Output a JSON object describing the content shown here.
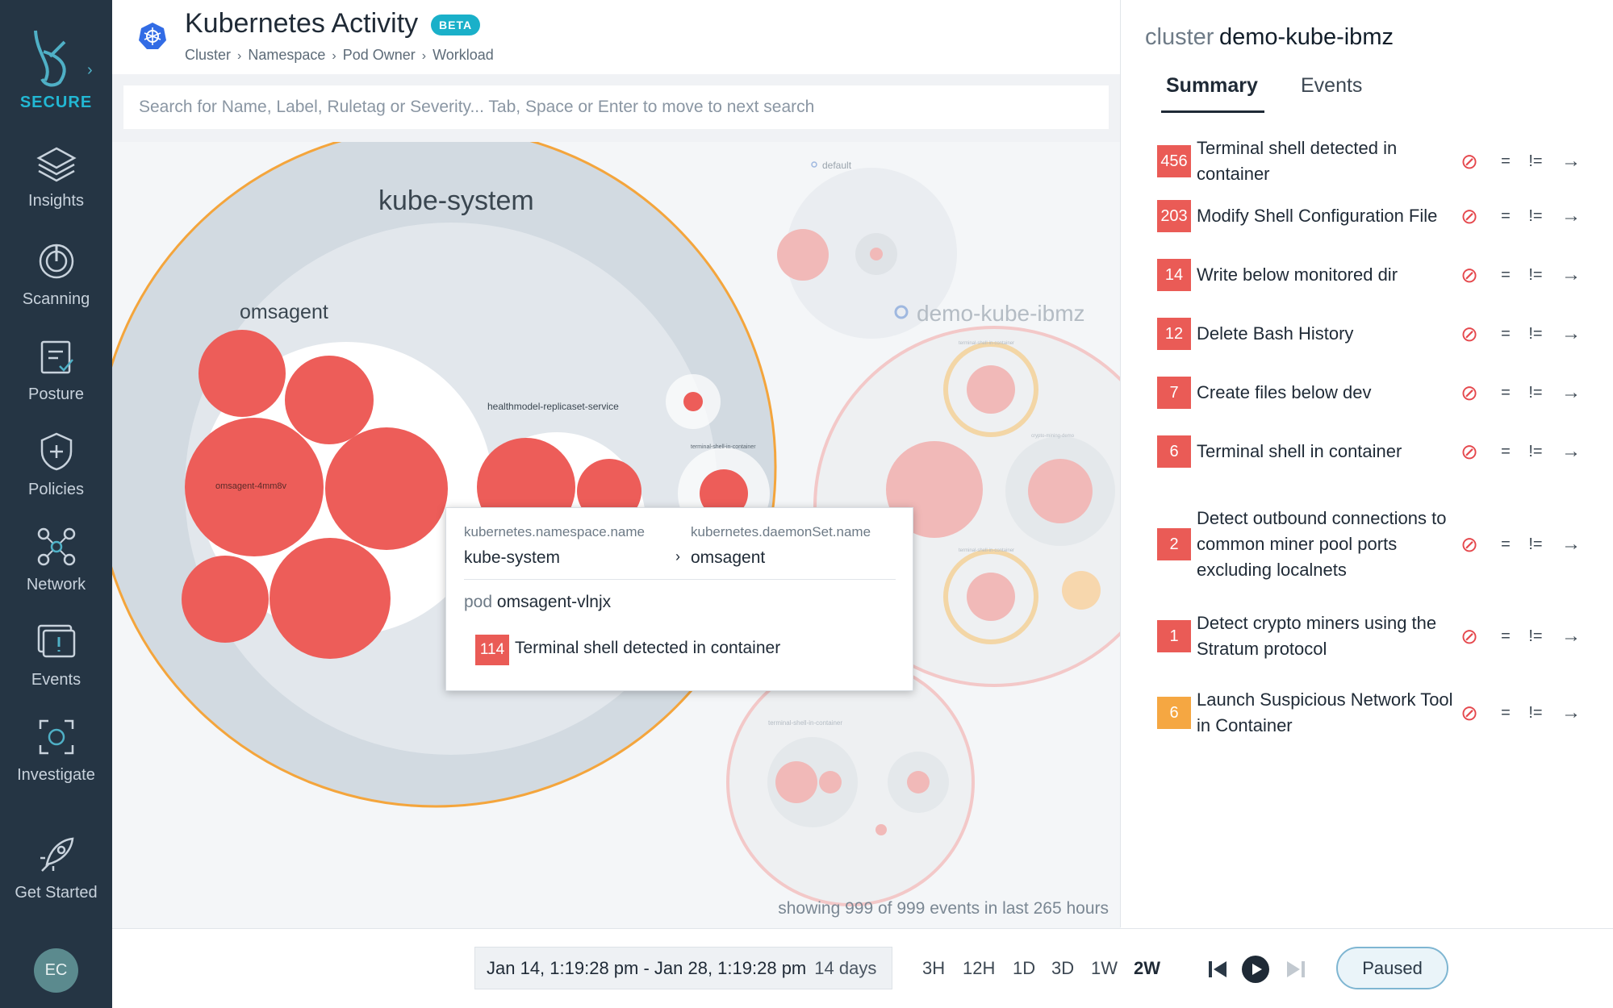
{
  "nav": {
    "brand": "SECURE",
    "items": [
      {
        "label": "Insights",
        "icon": "insights-icon"
      },
      {
        "label": "Scanning",
        "icon": "scanning-icon"
      },
      {
        "label": "Posture",
        "icon": "posture-icon"
      },
      {
        "label": "Policies",
        "icon": "policies-icon"
      },
      {
        "label": "Network",
        "icon": "network-icon"
      },
      {
        "label": "Events",
        "icon": "events-icon"
      },
      {
        "label": "Investigate",
        "icon": "investigate-icon"
      },
      {
        "label": "Get Started",
        "icon": "rocket-icon"
      }
    ],
    "avatar": "EC"
  },
  "header": {
    "title": "Kubernetes Activity",
    "badge": "BETA",
    "breadcrumb": [
      "Cluster",
      "Namespace",
      "Pod Owner",
      "Workload"
    ]
  },
  "search": {
    "placeholder": "Search for Name, Label, Ruletag or Severity... Tab, Space or Enter to move to next search"
  },
  "viz": {
    "namespace_kube_system": "kube-system",
    "workload_omsagent": "omsagent",
    "pod_label": "omsagent-4mm8v",
    "healthmodel": "healthmodel-replicaset-service",
    "terminal_small": "terminal-shell-in-container",
    "default_ns": "default",
    "cluster_label": "demo-kube-ibmz",
    "crypto_label": "crypto-mining-demo",
    "terminal_label_2": "terminal-shell-in-container",
    "terminal_label_3": "terminal-shell-in-container",
    "terminal_label_4": "terminal-shell-in-container",
    "status": "showing 999 of 999 events in last 265 hours"
  },
  "tooltip": {
    "ns_key": "kubernetes.namespace.name",
    "ns_val": "kube-system",
    "ds_key": "kubernetes.daemonSet.name",
    "ds_val": "omsagent",
    "pod_key": "pod",
    "pod_val": "omsagent-vlnjx",
    "event_count": "114",
    "event_name": "Terminal shell detected in container"
  },
  "timebar": {
    "range": "Jan 14, 1:19:28 pm - Jan 28, 1:19:28 pm",
    "duration": "14 days",
    "buttons": [
      "3H",
      "12H",
      "1D",
      "3D",
      "1W",
      "2W"
    ],
    "active": "2W",
    "paused_label": "Paused"
  },
  "panel": {
    "cluster_label": "cluster",
    "cluster_value": "demo-kube-ibmz",
    "tabs": [
      "Summary",
      "Events"
    ],
    "events": [
      {
        "count": "456",
        "name": "Terminal shell detected in container",
        "color": "#ea5b56"
      },
      {
        "count": "203",
        "name": "Modify Shell Configuration File",
        "color": "#ea5b56"
      },
      {
        "count": "14",
        "name": "Write below monitored dir",
        "color": "#ea5b56"
      },
      {
        "count": "12",
        "name": "Delete Bash History",
        "color": "#ea5b56"
      },
      {
        "count": "7",
        "name": "Create files below dev",
        "color": "#ea5b56"
      },
      {
        "count": "6",
        "name": "Terminal shell in container",
        "color": "#ea5b56"
      },
      {
        "count": "2",
        "name": "Detect outbound connections to common miner pool ports excluding localnets",
        "color": "#ea5b56"
      },
      {
        "count": "1",
        "name": "Detect crypto miners using the Stratum protocol",
        "color": "#ea5b56"
      },
      {
        "count": "6",
        "name": "Launch Suspicious Network Tool in Container",
        "color": "#f5a742"
      }
    ],
    "actions": {
      "exclude": "⊘",
      "eq": "=",
      "neq": "!=",
      "go": "→"
    }
  }
}
